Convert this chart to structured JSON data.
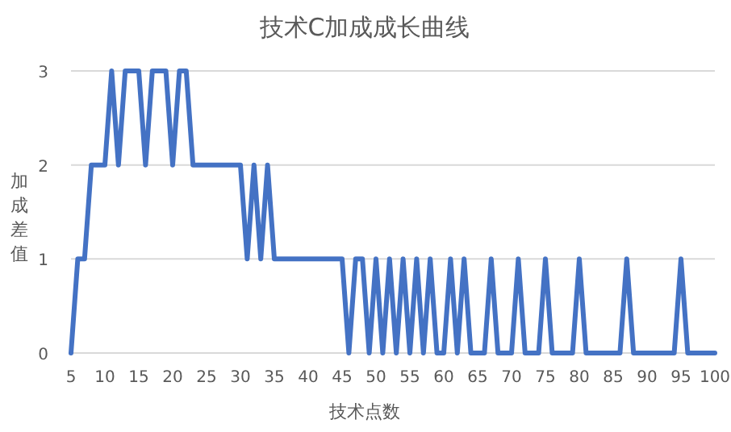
{
  "chart_data": {
    "type": "line",
    "title": "技术C加成成长曲线",
    "xlabel": "技术点数",
    "ylabel": "加成差值",
    "x": [
      5,
      6,
      7,
      8,
      9,
      10,
      11,
      12,
      13,
      14,
      15,
      16,
      17,
      18,
      19,
      20,
      21,
      22,
      23,
      24,
      25,
      26,
      27,
      28,
      29,
      30,
      31,
      32,
      33,
      34,
      35,
      36,
      37,
      38,
      39,
      40,
      41,
      42,
      43,
      44,
      45,
      46,
      47,
      48,
      49,
      50,
      51,
      52,
      53,
      54,
      55,
      56,
      57,
      58,
      59,
      60,
      61,
      62,
      63,
      64,
      65,
      66,
      67,
      68,
      69,
      70,
      71,
      72,
      73,
      74,
      75,
      76,
      77,
      78,
      79,
      80,
      81,
      82,
      83,
      84,
      85,
      86,
      87,
      88,
      89,
      90,
      91,
      92,
      93,
      94,
      95,
      96,
      97,
      98,
      99,
      100
    ],
    "series": [
      {
        "color": "#4472c4",
        "values": [
          0,
          1,
          1,
          2,
          2,
          2,
          3,
          2,
          3,
          3,
          3,
          2,
          3,
          3,
          3,
          2,
          3,
          3,
          2,
          2,
          2,
          2,
          2,
          2,
          2,
          2,
          1,
          2,
          1,
          2,
          1,
          1,
          1,
          1,
          1,
          1,
          1,
          1,
          1,
          1,
          1,
          0,
          1,
          1,
          0,
          1,
          0,
          1,
          0,
          1,
          0,
          1,
          0,
          1,
          0,
          0,
          1,
          0,
          1,
          0,
          0,
          0,
          1,
          0,
          0,
          0,
          1,
          0,
          0,
          0,
          1,
          0,
          0,
          0,
          0,
          1,
          0,
          0,
          0,
          0,
          0,
          0,
          1,
          0,
          0,
          0,
          0,
          0,
          0,
          0,
          1,
          0,
          0,
          0,
          0,
          0
        ]
      }
    ],
    "xlim": [
      5,
      100
    ],
    "xticks": [
      5,
      10,
      15,
      20,
      25,
      30,
      35,
      40,
      45,
      50,
      55,
      60,
      65,
      70,
      75,
      80,
      85,
      90,
      95,
      100
    ],
    "ylim": [
      0,
      3
    ],
    "yticks": [
      0,
      1,
      2,
      3
    ],
    "grid": "y",
    "marker": "none",
    "line_style": "solid"
  }
}
